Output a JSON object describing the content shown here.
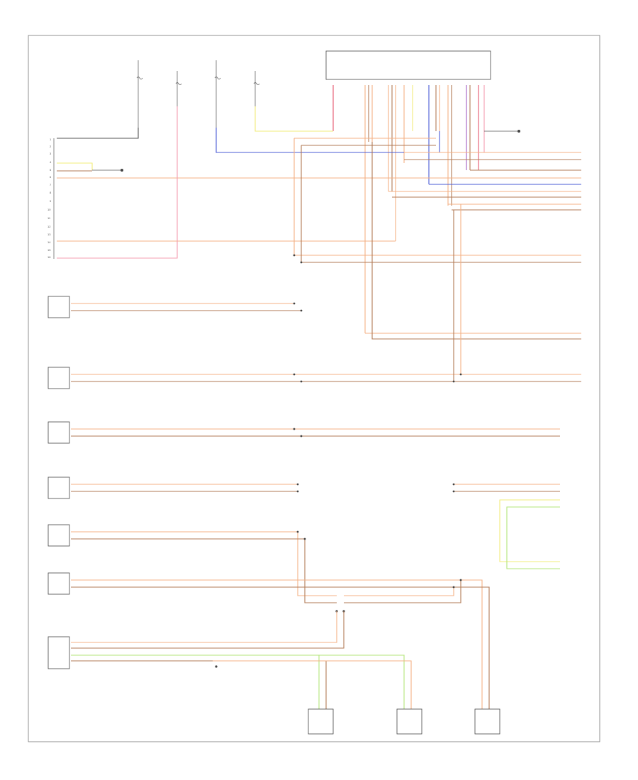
{
  "colors": {
    "orange": "#f4b184",
    "tan": "#ecc8a0",
    "brown": "#b27a55",
    "red": "#e5576d",
    "pink": "#f49db0",
    "blue": "#4a5bd6",
    "purple": "#a25cc4",
    "yellow": "#f2ec7a",
    "green": "#b3e57a",
    "gray": "#999999",
    "black": "#555555"
  },
  "page_code": "",
  "components": [
    {
      "id": "hot-fuse-1",
      "lines": [
        "",
        "",
        ""
      ]
    },
    {
      "id": "hot-fuse-2",
      "lines": [
        "",
        ""
      ]
    },
    {
      "id": "hot-fuse-3",
      "lines": [
        "",
        "",
        ""
      ]
    },
    {
      "id": "hot-fuse-4",
      "lines": [
        "",
        "",
        "",
        ""
      ]
    },
    {
      "id": "control-module",
      "lines": [
        "",
        "",
        "",
        "",
        "",
        ""
      ]
    },
    {
      "id": "ground-left",
      "lines": [
        ""
      ]
    },
    {
      "id": "ground-right",
      "lines": [
        "",
        ""
      ]
    },
    {
      "id": "connector-left",
      "lines": [
        "",
        "",
        "",
        ""
      ]
    },
    {
      "id": "sensor-1",
      "lines": [
        "",
        "",
        "",
        ""
      ]
    },
    {
      "id": "sensor-2",
      "lines": [
        "",
        "",
        "",
        ""
      ]
    },
    {
      "id": "sensor-3",
      "lines": [
        "",
        "",
        "",
        ""
      ]
    },
    {
      "id": "sensor-4",
      "lines": [
        "",
        ""
      ]
    },
    {
      "id": "sensor-5",
      "lines": [
        "",
        "",
        ""
      ]
    },
    {
      "id": "sensor-6",
      "lines": [
        "",
        "",
        "",
        "",
        ""
      ]
    },
    {
      "id": "sensor-7",
      "lines": [
        "",
        "",
        "",
        ""
      ]
    },
    {
      "id": "right-connector-a",
      "lines": [
        "",
        "",
        ""
      ]
    },
    {
      "id": "right-module",
      "lines": [
        "",
        "",
        "",
        "",
        ""
      ]
    },
    {
      "id": "right-connector-b",
      "lines": [
        "",
        "",
        "",
        "",
        ""
      ]
    },
    {
      "id": "splice-1",
      "lines": [
        ""
      ]
    },
    {
      "id": "splice-2",
      "lines": [
        ""
      ]
    },
    {
      "id": "splice-3",
      "lines": [
        ""
      ]
    },
    {
      "id": "bottom-module-1",
      "lines": [
        "",
        "",
        ""
      ]
    },
    {
      "id": "bottom-module-2",
      "lines": [
        "",
        "",
        ""
      ]
    },
    {
      "id": "bottom-module-3",
      "lines": [
        "",
        "",
        "",
        "",
        ""
      ]
    }
  ]
}
